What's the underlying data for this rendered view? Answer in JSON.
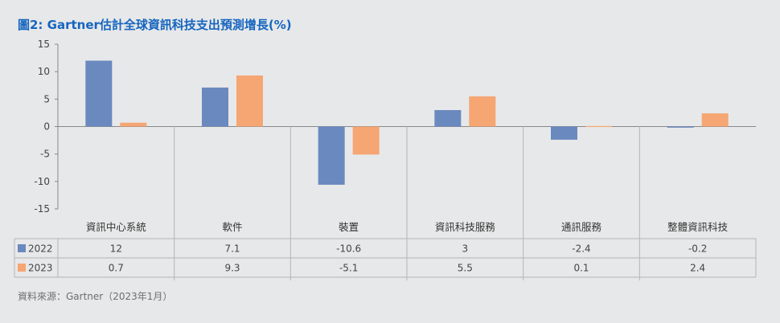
{
  "title": "圖2: Gartner估計全球資訊科技支出預測增長(%)",
  "source": "資料來源：Gartner（2023年1月）",
  "chart_data": {
    "type": "bar",
    "categories": [
      "資訊中心系統",
      "軟件",
      "裝置",
      "資訊科技服務",
      "通訊服務",
      "整體資訊科技"
    ],
    "series": [
      {
        "name": "2022",
        "values": [
          12,
          7.1,
          -10.6,
          3,
          -2.4,
          -0.2
        ],
        "labels": [
          "12",
          "7.1",
          "-10.6",
          "3",
          "-2.4",
          "-0.2"
        ],
        "color": "#6a89bf"
      },
      {
        "name": "2023",
        "values": [
          0.7,
          9.3,
          -5.1,
          5.5,
          0.1,
          2.4
        ],
        "labels": [
          "0.7",
          "9.3",
          "-5.1",
          "5.5",
          "0.1",
          "2.4"
        ],
        "color": "#f5a673"
      }
    ],
    "ylim": [
      -15,
      15
    ],
    "yticks": [
      15,
      10,
      5,
      0,
      -5,
      -10,
      -15
    ],
    "grid": false,
    "legend": "data table below chart"
  }
}
